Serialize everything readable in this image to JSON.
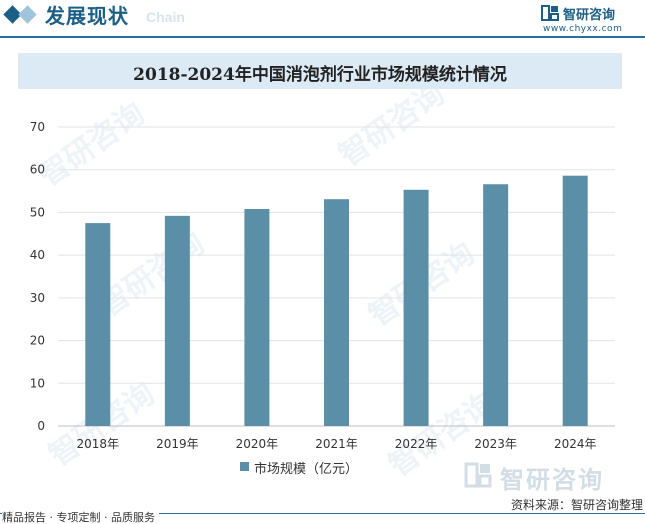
{
  "header": {
    "section_title": "发展现状",
    "section_en": "Chain",
    "brand_name": "智研咨询",
    "brand_url": "www.chyxx.com"
  },
  "chart_title": "2018-2024年中国消泡剂行业市场规模统计情况",
  "chart_data": {
    "type": "bar",
    "title": "2018-2024年中国消泡剂行业市场规模统计情况",
    "categories": [
      "2018年",
      "2019年",
      "2020年",
      "2021年",
      "2022年",
      "2023年",
      "2024年"
    ],
    "series": [
      {
        "name": "市场规模（亿元）",
        "values": [
          47.5,
          49.2,
          50.8,
          53.1,
          55.3,
          56.6,
          58.6
        ]
      }
    ],
    "xlabel": "",
    "ylabel": "",
    "ylim": [
      0,
      70
    ],
    "yticks": [
      0,
      10,
      20,
      30,
      40,
      50,
      60,
      70
    ],
    "grid": true,
    "legend_position": "bottom-center"
  },
  "colors": {
    "bar": "#5b8fa8",
    "accent": "#1b5f86",
    "title_bg": "#dbeaf4"
  },
  "watermark": {
    "brand": "智研咨询"
  },
  "footer": {
    "source": "资料来源：智研咨询整理",
    "tagline": "精品报告 · 专项定制 · 品质服务"
  }
}
